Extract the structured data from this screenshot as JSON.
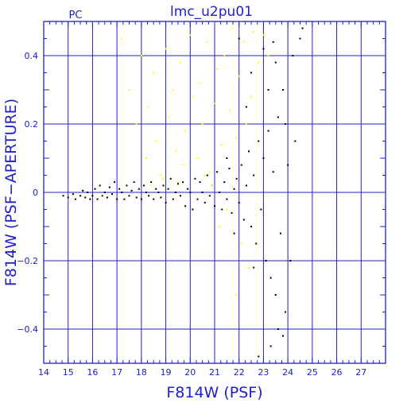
{
  "chart_data": {
    "type": "scatter",
    "title": "lmc_u2pu01",
    "corner_label": "PC",
    "xlabel": "F814W (PSF)",
    "ylabel": "F814W (PSF−APERTURE)",
    "xlim": [
      14,
      28
    ],
    "ylim": [
      -0.5,
      0.5
    ],
    "x_ticks": [
      14,
      15,
      16,
      17,
      18,
      19,
      20,
      21,
      22,
      23,
      24,
      25,
      26,
      27
    ],
    "y_ticks": [
      -0.4,
      -0.2,
      0,
      0.2,
      0.4
    ],
    "y_tick_labels": [
      "−0.4",
      "−0.2",
      "0",
      "0.2",
      "0.4"
    ],
    "grid": true,
    "colors": {
      "axis": "#2020c8",
      "series_black": "#000000",
      "series_yellow": "#ffff00"
    },
    "series": [
      {
        "color": "#000000",
        "points": [
          [
            14.8,
            -0.01
          ],
          [
            15.0,
            -0.015
          ],
          [
            15.2,
            -0.005
          ],
          [
            15.3,
            -0.02
          ],
          [
            15.5,
            -0.01
          ],
          [
            15.6,
            0.005
          ],
          [
            15.7,
            -0.015
          ],
          [
            15.8,
            0.0
          ],
          [
            15.9,
            -0.02
          ],
          [
            16.0,
            -0.01
          ],
          [
            16.1,
            0.01
          ],
          [
            16.2,
            -0.02
          ],
          [
            16.3,
            0.02
          ],
          [
            16.4,
            -0.01
          ],
          [
            16.5,
            0.0
          ],
          [
            16.6,
            -0.015
          ],
          [
            16.7,
            0.015
          ],
          [
            16.8,
            -0.005
          ],
          [
            16.9,
            0.03
          ],
          [
            17.0,
            -0.02
          ],
          [
            17.1,
            0.01
          ],
          [
            17.2,
            0.0
          ],
          [
            17.3,
            -0.02
          ],
          [
            17.4,
            0.02
          ],
          [
            17.5,
            -0.01
          ],
          [
            17.6,
            0.005
          ],
          [
            17.7,
            0.03
          ],
          [
            17.8,
            -0.015
          ],
          [
            17.9,
            0.01
          ],
          [
            18.0,
            -0.02
          ],
          [
            18.1,
            0.02
          ],
          [
            18.2,
            0.0
          ],
          [
            18.3,
            -0.01
          ],
          [
            18.4,
            0.03
          ],
          [
            18.5,
            -0.02
          ],
          [
            18.6,
            0.01
          ],
          [
            18.7,
            0.0
          ],
          [
            18.8,
            -0.015
          ],
          [
            18.9,
            0.02
          ],
          [
            19.0,
            -0.03
          ],
          [
            19.1,
            0.01
          ],
          [
            19.2,
            0.04
          ],
          [
            19.3,
            -0.02
          ],
          [
            19.4,
            0.0
          ],
          [
            19.5,
            0.025
          ],
          [
            19.6,
            -0.01
          ],
          [
            19.7,
            0.03
          ],
          [
            19.8,
            -0.04
          ],
          [
            19.9,
            0.01
          ],
          [
            20.0,
            0.0
          ],
          [
            20.1,
            -0.05
          ],
          [
            20.2,
            0.04
          ],
          [
            20.3,
            -0.02
          ],
          [
            20.4,
            0.03
          ],
          [
            20.5,
            0.0
          ],
          [
            20.6,
            -0.03
          ],
          [
            20.7,
            0.05
          ],
          [
            20.8,
            -0.01
          ],
          [
            20.9,
            0.02
          ],
          [
            21.0,
            -0.04
          ],
          [
            21.1,
            0.06
          ],
          [
            21.2,
            0.0
          ],
          [
            21.3,
            -0.05
          ],
          [
            21.4,
            0.03
          ],
          [
            21.5,
            -0.02
          ],
          [
            21.6,
            0.07
          ],
          [
            21.7,
            -0.06
          ],
          [
            21.8,
            0.01
          ],
          [
            21.9,
            0.04
          ],
          [
            22.0,
            -0.03
          ],
          [
            22.1,
            0.08
          ],
          [
            22.2,
            -0.08
          ],
          [
            22.3,
            0.02
          ],
          [
            22.4,
            0.12
          ],
          [
            22.5,
            -0.1
          ],
          [
            22.6,
            0.05
          ],
          [
            22.7,
            -0.15
          ],
          [
            22.8,
            0.15
          ],
          [
            22.9,
            -0.05
          ],
          [
            23.0,
            0.1
          ],
          [
            23.1,
            -0.2
          ],
          [
            23.2,
            0.18
          ],
          [
            23.3,
            -0.25
          ],
          [
            23.4,
            0.06
          ],
          [
            23.5,
            -0.3
          ],
          [
            23.6,
            0.22
          ],
          [
            23.7,
            -0.12
          ],
          [
            23.8,
            0.3
          ],
          [
            23.9,
            -0.35
          ],
          [
            24.0,
            0.08
          ],
          [
            24.1,
            -0.2
          ],
          [
            24.2,
            0.4
          ],
          [
            24.3,
            0.15
          ],
          [
            24.5,
            0.45
          ],
          [
            24.6,
            0.48
          ],
          [
            22.0,
            0.45
          ],
          [
            22.5,
            0.35
          ],
          [
            23.0,
            0.42
          ],
          [
            23.5,
            0.38
          ],
          [
            23.8,
            -0.42
          ],
          [
            23.3,
            -0.45
          ],
          [
            22.8,
            -0.48
          ],
          [
            23.6,
            -0.4
          ],
          [
            21.5,
            0.1
          ],
          [
            21.8,
            -0.12
          ],
          [
            22.3,
            0.25
          ],
          [
            23.2,
            0.3
          ],
          [
            22.6,
            -0.22
          ],
          [
            23.9,
            0.2
          ],
          [
            23.4,
            0.44
          ]
        ]
      },
      {
        "color": "#ffff00",
        "points": [
          [
            17.2,
            0.45
          ],
          [
            17.5,
            0.3
          ],
          [
            17.8,
            0.2
          ],
          [
            18.0,
            0.4
          ],
          [
            18.2,
            0.1
          ],
          [
            18.3,
            0.25
          ],
          [
            18.5,
            0.35
          ],
          [
            18.6,
            0.15
          ],
          [
            18.8,
            0.05
          ],
          [
            19.0,
            0.42
          ],
          [
            19.1,
            0.22
          ],
          [
            19.3,
            0.3
          ],
          [
            19.4,
            0.12
          ],
          [
            19.6,
            0.38
          ],
          [
            19.7,
            0.08
          ],
          [
            19.8,
            0.18
          ],
          [
            20.0,
            0.46
          ],
          [
            20.1,
            0.28
          ],
          [
            20.3,
            0.1
          ],
          [
            20.4,
            0.32
          ],
          [
            20.5,
            0.2
          ],
          [
            20.7,
            0.44
          ],
          [
            20.8,
            0.06
          ],
          [
            21.0,
            0.26
          ],
          [
            21.1,
            0.36
          ],
          [
            21.3,
            0.14
          ],
          [
            21.4,
            0.4
          ],
          [
            21.6,
            0.24
          ],
          [
            21.7,
            0.48
          ],
          [
            21.9,
            0.16
          ],
          [
            22.0,
            0.34
          ],
          [
            22.2,
            0.44
          ],
          [
            22.3,
            0.2
          ],
          [
            22.5,
            0.28
          ],
          [
            22.6,
            0.47
          ],
          [
            22.8,
            0.38
          ],
          [
            23.0,
            0.46
          ],
          [
            23.2,
            0.4
          ],
          [
            21.2,
            -0.1
          ],
          [
            21.9,
            -0.3
          ],
          [
            22.1,
            -0.15
          ],
          [
            22.4,
            -0.22
          ],
          [
            21.5,
            -0.05
          ],
          [
            20.9,
            0.02
          ],
          [
            20.6,
            0.05
          ],
          [
            19.5,
            0.03
          ],
          [
            18.9,
            0.04
          ],
          [
            18.4,
            0.02
          ]
        ]
      }
    ]
  }
}
